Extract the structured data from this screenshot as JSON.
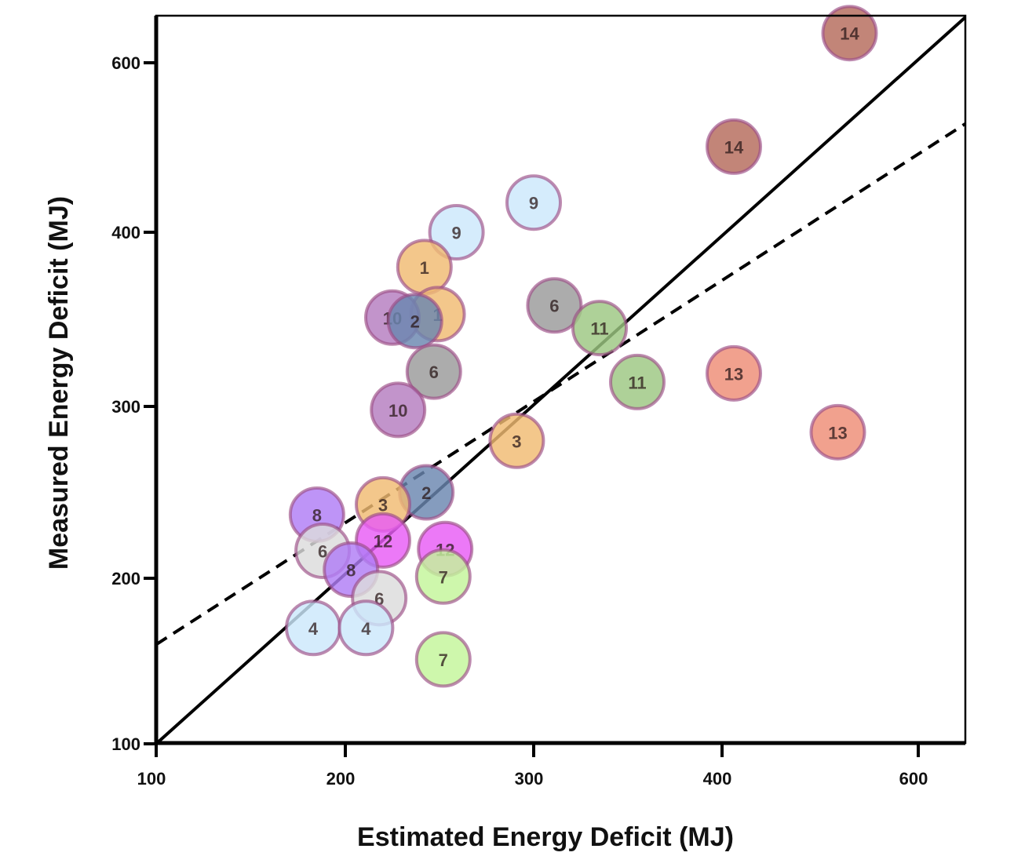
{
  "chart_data": {
    "type": "scatter",
    "title": "",
    "xlabel": "Estimated Energy Deficit (MJ)",
    "ylabel": "Measured Energy Deficit (MJ)",
    "xlim": [
      100,
      648
    ],
    "ylim": [
      100,
      656
    ],
    "x_ticks": [
      100,
      200,
      300,
      400,
      600
    ],
    "y_ticks": [
      100,
      200,
      300,
      400,
      600
    ],
    "x_tick_labels": [
      "100",
      "200",
      "300",
      "400",
      "600"
    ],
    "y_tick_labels": [
      "100",
      "200",
      "300",
      "400",
      "600"
    ],
    "axis_scale": "nonlinear (ticks equally spaced)",
    "grid": false,
    "legend": "none",
    "points": [
      {
        "label": "14",
        "x": 530,
        "y": 635,
        "color": "#b56a5a"
      },
      {
        "label": "14",
        "x": 412,
        "y": 501,
        "color": "#b56a5a"
      },
      {
        "label": "9",
        "x": 300,
        "y": 435,
        "color": "#cce8fb"
      },
      {
        "label": "9",
        "x": 259,
        "y": 400,
        "color": "#cce8fb"
      },
      {
        "label": "1",
        "x": 242,
        "y": 380,
        "color": "#f0bb72"
      },
      {
        "label": "1",
        "x": 249,
        "y": 353,
        "color": "#f0bb72"
      },
      {
        "label": "10",
        "x": 225,
        "y": 351,
        "color": "#b47cc0"
      },
      {
        "label": "2",
        "x": 237,
        "y": 349,
        "color": "#6a86b0"
      },
      {
        "label": "6",
        "x": 311,
        "y": 358,
        "color": "#9a9a9a"
      },
      {
        "label": "11",
        "x": 335,
        "y": 345,
        "color": "#9cc781"
      },
      {
        "label": "6",
        "x": 247,
        "y": 320,
        "color": "#9a9a9a"
      },
      {
        "label": "11",
        "x": 355,
        "y": 314,
        "color": "#9cc781"
      },
      {
        "label": "13",
        "x": 412,
        "y": 319,
        "color": "#ee8c75"
      },
      {
        "label": "13",
        "x": 518,
        "y": 285,
        "color": "#ee8c75"
      },
      {
        "label": "10",
        "x": 228,
        "y": 298,
        "color": "#b47cc0"
      },
      {
        "label": "3",
        "x": 291,
        "y": 280,
        "color": "#f0bb72"
      },
      {
        "label": "2",
        "x": 243,
        "y": 250,
        "color": "#6a86b0"
      },
      {
        "label": "3",
        "x": 220,
        "y": 243,
        "color": "#f0bb72"
      },
      {
        "label": "8",
        "x": 185,
        "y": 237,
        "color": "#b07cf5"
      },
      {
        "label": "12",
        "x": 220,
        "y": 222,
        "color": "#e85cf5"
      },
      {
        "label": "12",
        "x": 253,
        "y": 217,
        "color": "#e85cf5"
      },
      {
        "label": "6",
        "x": 188,
        "y": 216,
        "color": "#dcdcdc"
      },
      {
        "label": "8",
        "x": 203,
        "y": 205,
        "color": "#b07cf5"
      },
      {
        "label": "7",
        "x": 252,
        "y": 201,
        "color": "#c3f59a"
      },
      {
        "label": "6",
        "x": 218,
        "y": 188,
        "color": "#dcdcdc"
      },
      {
        "label": "4",
        "x": 183,
        "y": 170,
        "color": "#cce8fb"
      },
      {
        "label": "4",
        "x": 211,
        "y": 170,
        "color": "#cce8fb"
      },
      {
        "label": "7",
        "x": 252,
        "y": 151,
        "color": "#c3f59a"
      }
    ],
    "lines": [
      {
        "name": "line-of-identity",
        "style": "solid",
        "from": [
          100,
          100
        ],
        "to": [
          648,
          656
        ]
      },
      {
        "name": "regression-line",
        "style": "dashed",
        "from": [
          100,
          160
        ],
        "to": [
          648,
          528
        ]
      }
    ],
    "marker_border_color": "#9b4d86",
    "label_color": "#2b1a1a"
  }
}
